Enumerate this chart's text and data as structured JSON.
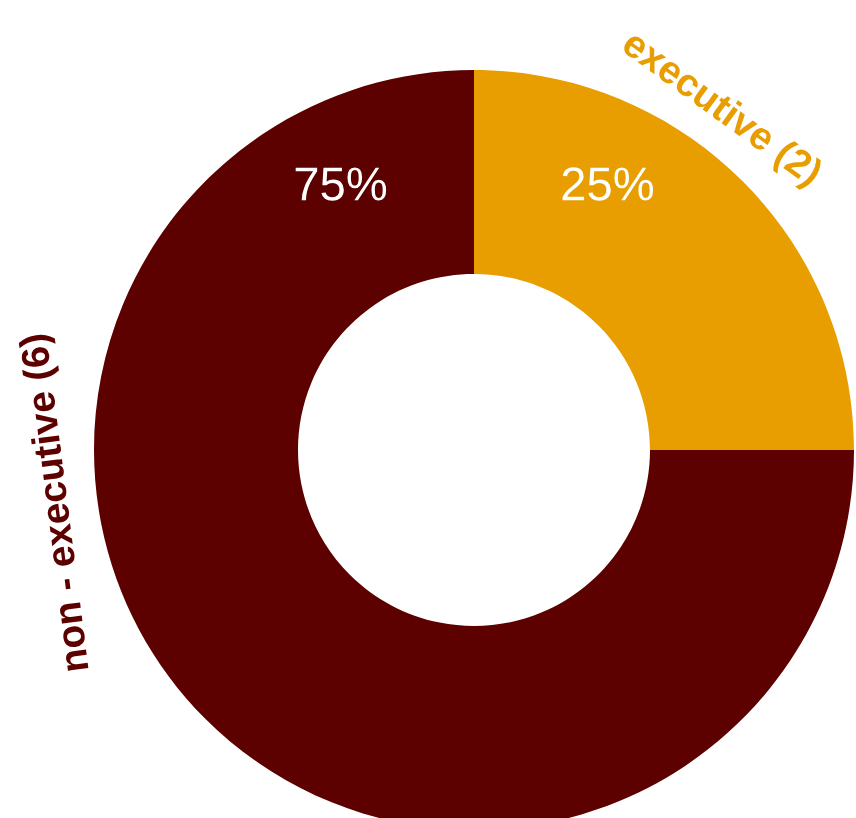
{
  "chart_data": {
    "type": "donut",
    "categories": [
      "executive (2)",
      "non - executive (6)"
    ],
    "values": [
      25,
      75
    ],
    "colors": [
      "#e89e00",
      "#5c0000"
    ],
    "value_labels": [
      "25%",
      "75%"
    ]
  }
}
